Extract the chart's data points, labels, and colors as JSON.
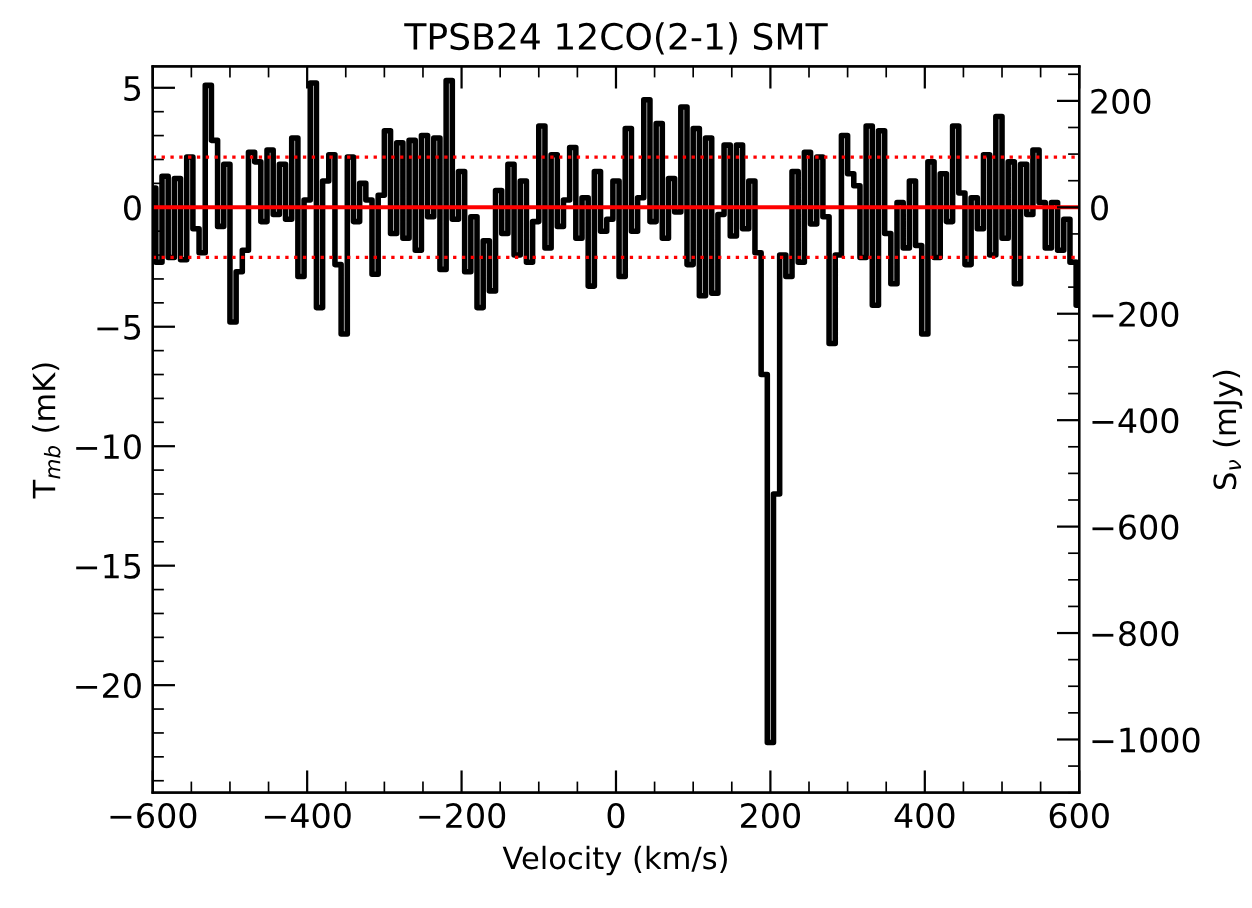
{
  "chart_data": {
    "type": "step",
    "title": "TPSB24 12CO(2-1) SMT",
    "xlabel": "Velocity (km/s)",
    "ylabel": "T$_{mb}$ (mK)",
    "y2label": "S$_{ν}$ (mJy)",
    "x": [
      -600,
      -592,
      -584,
      -576,
      -568,
      -560,
      -552,
      -544,
      -536,
      -528,
      -520,
      -512,
      -504,
      -496,
      -488,
      -480,
      -472,
      -464,
      -456,
      -448,
      -440,
      -432,
      -424,
      -416,
      -408,
      -400,
      -392,
      -384,
      -376,
      -368,
      -360,
      -352,
      -344,
      -336,
      -328,
      -320,
      -312,
      -304,
      -296,
      -288,
      -280,
      -272,
      -264,
      -256,
      -248,
      -240,
      -232,
      -224,
      -216,
      -208,
      -200,
      -192,
      -184,
      -176,
      -168,
      -160,
      -152,
      -144,
      -136,
      -128,
      -120,
      -112,
      -104,
      -96,
      -88,
      -80,
      -72,
      -64,
      -56,
      -48,
      -40,
      -32,
      -24,
      -16,
      -8,
      0,
      8,
      16,
      24,
      32,
      40,
      48,
      56,
      64,
      72,
      80,
      88,
      96,
      104,
      112,
      120,
      128,
      136,
      144,
      152,
      160,
      168,
      176,
      184,
      192,
      200,
      208,
      216,
      224,
      232,
      240,
      248,
      256,
      264,
      272,
      280,
      288,
      296,
      304,
      312,
      320,
      328,
      336,
      344,
      352,
      360,
      368,
      376,
      384,
      392,
      400,
      408,
      416,
      424,
      432,
      440,
      448,
      456,
      464,
      472,
      480,
      488,
      496,
      504,
      512,
      520,
      528,
      536,
      544,
      552,
      560,
      568,
      576,
      584,
      592,
      600
    ],
    "series": [
      {
        "color": "#000000",
        "values": [
          0.8,
          -2.3,
          1.3,
          -2.1,
          1.2,
          -2.2,
          2.1,
          -0.9,
          -1.9,
          5.1,
          2.8,
          -0.8,
          1.8,
          -4.8,
          -2.7,
          -1.8,
          2.3,
          1.9,
          -0.6,
          2.4,
          -0.3,
          1.8,
          -0.5,
          2.9,
          -2.9,
          0.3,
          5.2,
          -4.2,
          1.1,
          2.2,
          -2.4,
          -5.3,
          2.1,
          -0.6,
          1.0,
          0.3,
          -2.8,
          0.5,
          3.2,
          -1.1,
          2.7,
          -1.3,
          2.8,
          -1.8,
          3.0,
          -0.4,
          2.9,
          -2.6,
          5.3,
          -0.5,
          1.5,
          -2.7,
          -0.4,
          -4.2,
          -1.4,
          -3.5,
          0.7,
          -1.1,
          1.8,
          -2.0,
          1.1,
          -2.3,
          -0.6,
          3.4,
          -1.7,
          2.2,
          -0.8,
          0.3,
          2.5,
          -1.3,
          0.4,
          -3.3,
          1.5,
          -1.0,
          -0.5,
          1.1,
          -2.9,
          3.3,
          -1.0,
          0.4,
          4.5,
          -0.6,
          3.5,
          -1.3,
          1.2,
          -0.2,
          4.2,
          -2.4,
          3.3,
          -3.7,
          2.9,
          -3.6,
          -0.3,
          2.6,
          -1.2,
          2.6,
          -0.9,
          1.1,
          -1.9,
          -7.0,
          -22.4,
          -12.0,
          -2.0,
          -2.9,
          1.5,
          -2.3,
          2.3,
          -0.7,
          2.1,
          -0.4,
          -5.7,
          -2.0,
          3.0,
          1.4,
          0.9,
          -2.1,
          3.4,
          -4.1,
          3.2,
          -1.1,
          -3.2,
          0.2,
          -1.7,
          1.1,
          -1.6,
          -5.3,
          1.9,
          -2.1,
          1.4,
          -0.6,
          3.4,
          0.6,
          -2.4,
          0.4,
          -0.9,
          2.2,
          -2.0,
          3.8,
          -1.3,
          1.9,
          -3.2,
          1.8,
          -0.3,
          2.4,
          0.2,
          -1.7,
          0.2,
          -1.8,
          -0.5,
          -2.3,
          -4.1
        ]
      }
    ],
    "xlim": [
      -600,
      600
    ],
    "xticks": [
      -600,
      -400,
      -200,
      0,
      200,
      400,
      600
    ],
    "ylim": [
      -24.5,
      5.9
    ],
    "yticks": [
      -20,
      -15,
      -10,
      -5,
      0,
      5
    ],
    "y2lim": [
      -1100,
      265
    ],
    "y2ticks": [
      -1000,
      -800,
      -600,
      -400,
      -200,
      0,
      200
    ],
    "ref_lines": [
      {
        "axis": "y",
        "value": 0,
        "color": "#ff0000",
        "line_style": "solid"
      },
      {
        "axis": "y",
        "value": 2.1,
        "color": "#ff0000",
        "line_style": "dotted"
      },
      {
        "axis": "y",
        "value": -2.1,
        "color": "#ff0000",
        "line_style": "dotted"
      }
    ],
    "grid": false
  }
}
